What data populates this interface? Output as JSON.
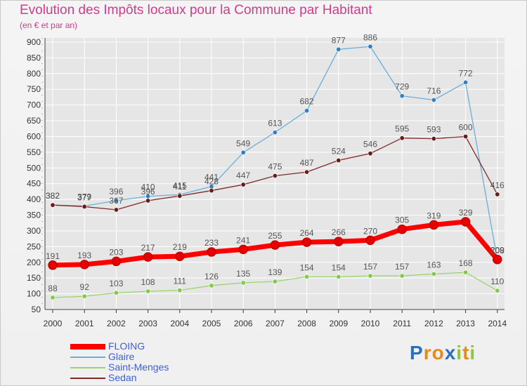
{
  "header": {
    "title": "Evolution des Impôts locaux pour la Commune par Habitant",
    "subtitle": "(en € et par an)"
  },
  "logo": {
    "letters": [
      "P",
      "r",
      "o",
      "x",
      "i",
      "t",
      "i"
    ]
  },
  "colors": {
    "title": "#d33a8a",
    "legend_text": "#3f5fd8",
    "axis": "#333333",
    "grid": "#ffffff"
  },
  "chart_data": {
    "type": "line",
    "x": [
      "2000",
      "2001",
      "2002",
      "2003",
      "2004",
      "2005",
      "2006",
      "2007",
      "2008",
      "2009",
      "2010",
      "2011",
      "2012",
      "2013",
      "2014"
    ],
    "ylim": [
      50,
      900
    ],
    "yticks": [
      "50",
      "100",
      "150",
      "200",
      "250",
      "300",
      "350",
      "400",
      "450",
      "500",
      "550",
      "600",
      "650",
      "700",
      "750",
      "800",
      "850",
      "900"
    ],
    "grid": true,
    "legend_position": "bottom-left",
    "series": [
      {
        "name": "FLOING",
        "color": "#ff0000",
        "marker": "#e80000",
        "width": 7,
        "values": [
          191,
          193,
          203,
          217,
          219,
          233,
          241,
          255,
          264,
          266,
          270,
          305,
          319,
          329,
          209
        ],
        "labels": [
          "191",
          "193",
          "203",
          "217",
          "219",
          "233",
          "241",
          "255",
          "264",
          "266",
          "270",
          "305",
          "319",
          "329",
          "209"
        ]
      },
      {
        "name": "Glaire",
        "color": "#6aaedc",
        "marker": "#2f7fc4",
        "width": 1.3,
        "values": [
          382,
          379,
          396,
          410,
          415,
          441,
          549,
          613,
          682,
          877,
          886,
          729,
          716,
          772,
          208
        ],
        "labels": [
          "382",
          "379",
          "396",
          "410",
          "415",
          "441",
          "549",
          "613",
          "682",
          "877",
          "886",
          "729",
          "716",
          "772",
          "208"
        ]
      },
      {
        "name": "Saint-Menges",
        "color": "#9bd56a",
        "marker": "#7ccc44",
        "width": 1.3,
        "values": [
          88,
          92,
          103,
          108,
          111,
          126,
          135,
          139,
          154,
          154,
          157,
          157,
          163,
          168,
          110
        ],
        "labels": [
          "88",
          "92",
          "103",
          "108",
          "111",
          "126",
          "135",
          "139",
          "154",
          "154",
          "157",
          "157",
          "163",
          "168",
          "110"
        ]
      },
      {
        "name": "Sedan",
        "color": "#7d2a2a",
        "marker": "#6b1a1a",
        "width": 1.3,
        "values": [
          382,
          377,
          367,
          396,
          411,
          428,
          447,
          475,
          487,
          524,
          546,
          595,
          593,
          600,
          416
        ],
        "labels": [
          "382",
          "377",
          "367",
          "396",
          "411",
          "428",
          "447",
          "475",
          "487",
          "524",
          "546",
          "595",
          "593",
          "600",
          "416"
        ]
      }
    ]
  }
}
